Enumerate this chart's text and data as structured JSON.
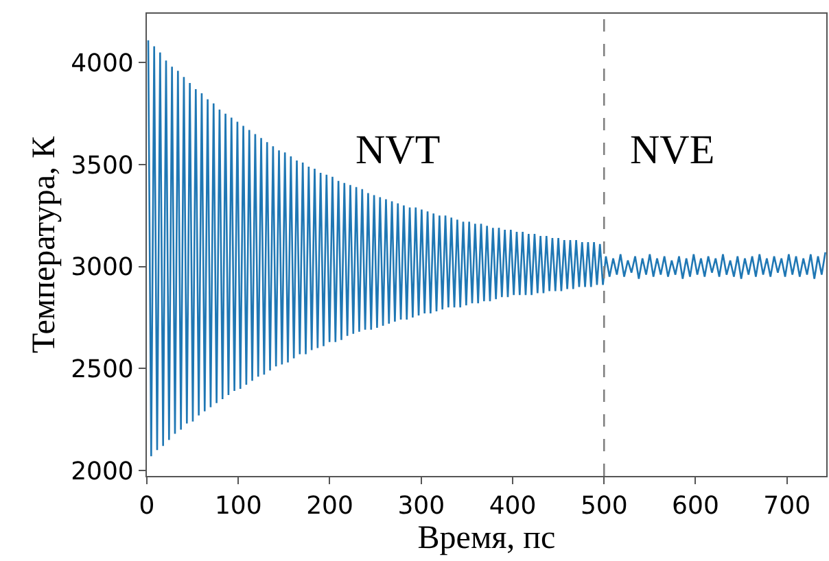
{
  "chart_data": {
    "type": "line",
    "xlabel": "Время, пс",
    "ylabel": "Температура, К",
    "xlim": [
      0,
      743
    ],
    "ylim": [
      1973,
      4240
    ],
    "xticks": [
      0,
      100,
      200,
      300,
      400,
      500,
      600,
      700
    ],
    "yticks": [
      2000,
      2500,
      3000,
      3500,
      4000
    ],
    "marker": "none",
    "line_style": "solid",
    "ref_lines": [
      {
        "axis": "x",
        "value": 500,
        "color": "#808080",
        "line_style": "dashed"
      }
    ],
    "annotations": [
      "NVT",
      "NVE"
    ],
    "series": [
      {
        "color": "#1f77b4",
        "x": [
          1.5,
          4.75,
          8,
          11.25,
          14.5,
          17.75,
          21,
          24.25,
          27.5,
          30.75,
          34,
          37.25,
          40.5,
          43.75,
          47,
          50.25,
          53.5,
          56.75,
          60,
          63.25,
          66.5,
          69.75,
          73,
          76.25,
          79.5,
          82.75,
          86,
          89.25,
          92.5,
          95.75,
          99,
          102.25,
          105.5,
          108.75,
          112,
          115.25,
          118.5,
          121.75,
          125,
          128.25,
          131.5,
          134.75,
          138,
          141.25,
          144.5,
          147.75,
          151,
          154.25,
          157.5,
          160.75,
          164,
          167.25,
          170.5,
          173.75,
          177,
          180.25,
          183.5,
          186.75,
          190,
          193.25,
          196.5,
          199.75,
          203,
          206.25,
          209.5,
          212.75,
          216,
          219.25,
          222.5,
          225.75,
          229,
          232.25,
          235.5,
          238.75,
          242,
          245.25,
          248.5,
          251.75,
          255,
          258.25,
          261.5,
          264.75,
          268,
          271.25,
          274.5,
          277.75,
          281,
          284.25,
          287.5,
          290.75,
          294,
          297.25,
          300.5,
          303.75,
          307,
          310.25,
          313.5,
          316.75,
          320,
          323.25,
          326.5,
          329.75,
          333,
          336.25,
          339.5,
          342.75,
          346,
          349.25,
          352.5,
          355.75,
          359,
          362.25,
          365.5,
          368.75,
          372,
          375.25,
          378.5,
          381.75,
          385,
          388.25,
          391.5,
          394.75,
          398,
          401.25,
          404.5,
          407.75,
          411,
          414.25,
          417.5,
          420.75,
          424,
          427.25,
          430.5,
          433.75,
          437,
          440.25,
          443.5,
          446.75,
          450,
          453.25,
          456.5,
          459.75,
          463,
          466.25,
          469.5,
          472.75,
          476,
          479.25,
          482.5,
          485.75,
          489,
          492.25,
          495.5,
          498.75,
          502,
          506,
          510,
          514,
          518,
          522,
          526,
          530,
          534,
          538,
          542,
          546,
          550,
          554,
          558,
          562,
          566,
          570,
          574,
          578,
          582,
          586,
          590,
          594,
          598,
          602,
          606,
          610,
          614,
          618,
          622,
          626,
          630,
          634,
          638,
          642,
          646,
          650,
          654,
          658,
          662,
          666,
          670,
          674,
          678,
          682,
          686,
          690,
          694,
          698,
          702,
          706,
          710,
          714,
          718,
          722,
          726,
          730,
          734,
          738,
          742
        ],
        "values": [
          4110,
          2070,
          4080,
          2100,
          4050,
          2120,
          4010,
          2150,
          3980,
          2180,
          3960,
          2200,
          3930,
          2230,
          3900,
          2240,
          3870,
          2270,
          3850,
          2290,
          3820,
          2310,
          3800,
          2330,
          3770,
          2350,
          3750,
          2370,
          3730,
          2390,
          3710,
          2400,
          3690,
          2420,
          3670,
          2440,
          3650,
          2460,
          3630,
          2470,
          3610,
          2490,
          3590,
          2510,
          3570,
          2520,
          3560,
          2530,
          3540,
          2550,
          3520,
          2570,
          3510,
          2570,
          3490,
          2590,
          3480,
          2600,
          3460,
          2610,
          3450,
          2630,
          3440,
          2630,
          3420,
          2640,
          3410,
          2660,
          3400,
          2670,
          3390,
          2680,
          3380,
          2690,
          3360,
          2690,
          3350,
          2700,
          3340,
          2710,
          3330,
          2720,
          3320,
          2730,
          3310,
          2740,
          3300,
          2740,
          3290,
          2750,
          3290,
          2760,
          3280,
          2770,
          3270,
          2770,
          3260,
          2780,
          3250,
          2790,
          3250,
          2800,
          3240,
          2800,
          3230,
          2800,
          3220,
          2810,
          3220,
          2820,
          3210,
          2820,
          3210,
          2830,
          3200,
          2830,
          3190,
          2840,
          3190,
          2850,
          3180,
          2850,
          3180,
          2860,
          3170,
          2860,
          3170,
          2860,
          3160,
          2860,
          3160,
          2870,
          3150,
          2870,
          3150,
          2880,
          3140,
          2880,
          3140,
          2880,
          3130,
          2890,
          3130,
          2890,
          3130,
          2900,
          3120,
          2900,
          3120,
          2900,
          3120,
          2910,
          3110,
          2910,
          3050,
          2950,
          3040,
          2960,
          3060,
          2950,
          3030,
          2970,
          3050,
          2940,
          3040,
          2960,
          3060,
          2950,
          3040,
          2960,
          3050,
          2950,
          3030,
          2960,
          3050,
          2940,
          3040,
          2950,
          3060,
          2960,
          3040,
          2950,
          3050,
          2970,
          3040,
          2950,
          3060,
          2960,
          3030,
          2950,
          3050,
          2940,
          3040,
          2960,
          3050,
          2950,
          3060,
          2960,
          3040,
          2950,
          3050,
          2970,
          3040,
          2950,
          3060,
          2960,
          3050,
          2950,
          3040,
          2960,
          3060,
          2940,
          3050,
          2960,
          3070
        ]
      }
    ]
  }
}
